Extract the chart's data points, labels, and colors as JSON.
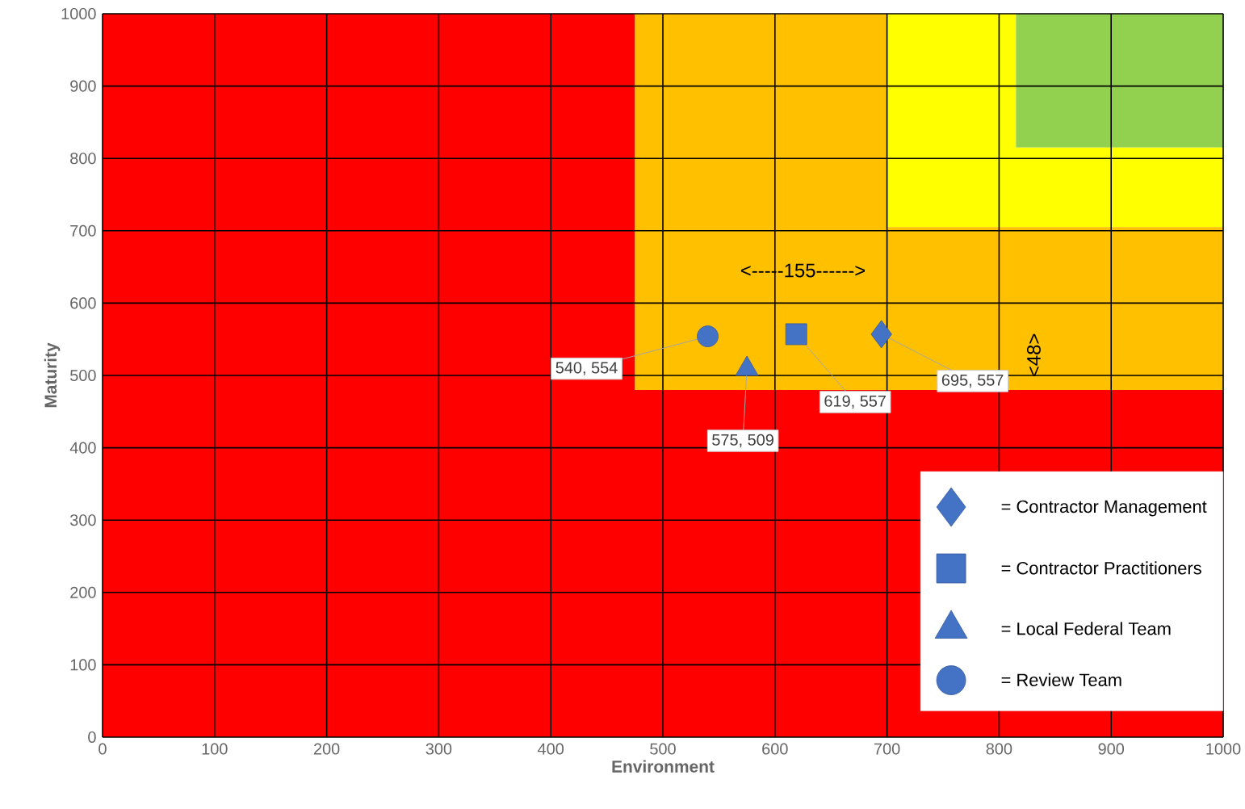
{
  "chart_data": {
    "type": "scatter",
    "xlabel": "Environment",
    "ylabel": "Maturity",
    "xlim": [
      0,
      1000
    ],
    "ylim": [
      0,
      1000
    ],
    "xticks": [
      0,
      100,
      200,
      300,
      400,
      500,
      600,
      700,
      800,
      900,
      1000
    ],
    "yticks": [
      0,
      100,
      200,
      300,
      400,
      500,
      600,
      700,
      800,
      900,
      1000
    ],
    "grid": true,
    "legend": "bottom right",
    "stacked": true,
    "series": [
      {
        "type": "area",
        "color": "#ff0000",
        "x": [
          0,
          475,
          475,
          700,
          700,
          815,
          815,
          1000
        ],
        "values": [
          1000,
          1000,
          480,
          480,
          480,
          480,
          480,
          480
        ]
      },
      {
        "type": "area",
        "color": "#ffc000",
        "x": [
          0,
          475,
          475,
          700,
          700,
          815,
          815,
          1000
        ],
        "values": [
          0,
          0,
          520,
          520,
          225,
          225,
          225,
          225
        ]
      },
      {
        "type": "area",
        "color": "#ffff00",
        "x": [
          0,
          475,
          475,
          700,
          700,
          815,
          815,
          1000
        ],
        "values": [
          0,
          0,
          0,
          0,
          295,
          295,
          110,
          110
        ]
      },
      {
        "type": "area",
        "color": "#92d050",
        "x": [
          0,
          475,
          475,
          700,
          700,
          815,
          815,
          1000
        ],
        "values": [
          0,
          0,
          0,
          0,
          0,
          0,
          185,
          185
        ]
      },
      {
        "name": "= Contractor Management",
        "color": "#4472c4",
        "marker": "diamond",
        "x": [
          695
        ],
        "values": [
          557
        ],
        "value_labels": [
          "695, 557"
        ]
      },
      {
        "name": "= Contractor Practitioners",
        "color": "#4472c4",
        "marker": "square",
        "x": [
          619
        ],
        "values": [
          557
        ],
        "value_labels": [
          "619, 557"
        ]
      },
      {
        "name": "= Local Federal Team",
        "color": "#4472c4",
        "marker": "triangle",
        "x": [
          575
        ],
        "values": [
          509
        ],
        "value_labels": [
          "575, 509"
        ]
      },
      {
        "name": "= Review Team",
        "color": "#4472c4",
        "marker": "circle",
        "x": [
          540
        ],
        "values": [
          554
        ],
        "value_labels": [
          "540, 554"
        ]
      }
    ],
    "annotations": [
      "<-----155------>",
      "<48>"
    ]
  }
}
